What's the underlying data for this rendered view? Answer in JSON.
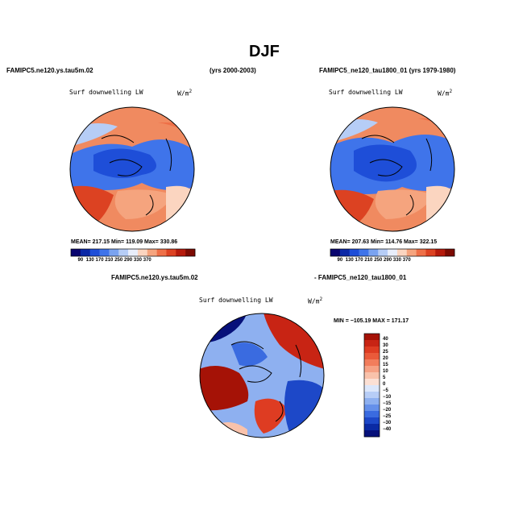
{
  "figure": {
    "title": "DJF",
    "left_case": "FAMIPC5.ne120.ys.tau5m.02",
    "left_years": "(yrs 2000-2003)",
    "right_case": "FAMIPC5_ne120_tau1800_01 (yrs 1979-1980)",
    "diff_left_label": "FAMIPC5.ne120.ys.tau5m.02",
    "diff_right_label": "- FAMIPC5_ne120_tau1800_01"
  },
  "panels": {
    "left": {
      "variable": "Surf downwelling LW",
      "units": "W/m",
      "units_sup": "2",
      "stats": "MEAN= 217.15   Min= 119.09   Max= 330.86"
    },
    "right": {
      "variable": "Surf downwelling LW",
      "units": "W/m",
      "units_sup": "2",
      "stats": "MEAN= 207.63   Min= 114.76   Max= 322.15"
    },
    "diff": {
      "variable": "Surf downwelling LW",
      "units": "W/m",
      "units_sup": "2",
      "stats": "MIN = −105.19  MAX = 171.17"
    }
  },
  "chart_data": [
    {
      "type": "heatmap",
      "name": "left-map",
      "title": "Surf downwelling LW",
      "units": "W/m2",
      "projection": "north polar stereographic",
      "mean": 217.15,
      "min": 119.09,
      "max": 330.86,
      "colorbar_ticks": [
        "90",
        "130",
        "170",
        "210",
        "250",
        "290",
        "330",
        "370"
      ],
      "colorbar_colors": [
        "#08046e",
        "#0b28a6",
        "#1e4ed8",
        "#3f74ea",
        "#7aa3f0",
        "#b6cdf6",
        "#e8eefb",
        "#fbd5c0",
        "#f5a47e",
        "#ee7048",
        "#dc4222",
        "#b51a0c",
        "#7c0a02"
      ]
    },
    {
      "type": "heatmap",
      "name": "right-map",
      "title": "Surf downwelling LW",
      "units": "W/m2",
      "projection": "north polar stereographic",
      "mean": 207.63,
      "min": 114.76,
      "max": 322.15,
      "colorbar_ticks": [
        "90",
        "130",
        "170",
        "210",
        "250",
        "290",
        "330",
        "370"
      ],
      "colorbar_colors": [
        "#08046e",
        "#0b28a6",
        "#1e4ed8",
        "#3f74ea",
        "#7aa3f0",
        "#b6cdf6",
        "#e8eefb",
        "#fbd5c0",
        "#f5a47e",
        "#ee7048",
        "#dc4222",
        "#b51a0c",
        "#7c0a02"
      ]
    },
    {
      "type": "heatmap",
      "name": "difference-map",
      "title": "Surf downwelling LW",
      "units": "W/m2",
      "projection": "north polar stereographic",
      "min": -105.19,
      "max": 171.17,
      "colorbar_ticks": [
        "40",
        "30",
        "25",
        "20",
        "15",
        "10",
        "5",
        "0",
        "−5",
        "−10",
        "−15",
        "−20",
        "−25",
        "−30",
        "−40"
      ],
      "colorbar_colors": [
        "#a51206",
        "#c82414",
        "#de3c22",
        "#ea5a3a",
        "#f27d5c",
        "#f6a184",
        "#f9c2ab",
        "#fce0d4",
        "#dce7fb",
        "#b7cdf6",
        "#8eb0f0",
        "#6590ea",
        "#3a6be0",
        "#1d48c8",
        "#0a2aa4",
        "#06107a"
      ]
    }
  ]
}
